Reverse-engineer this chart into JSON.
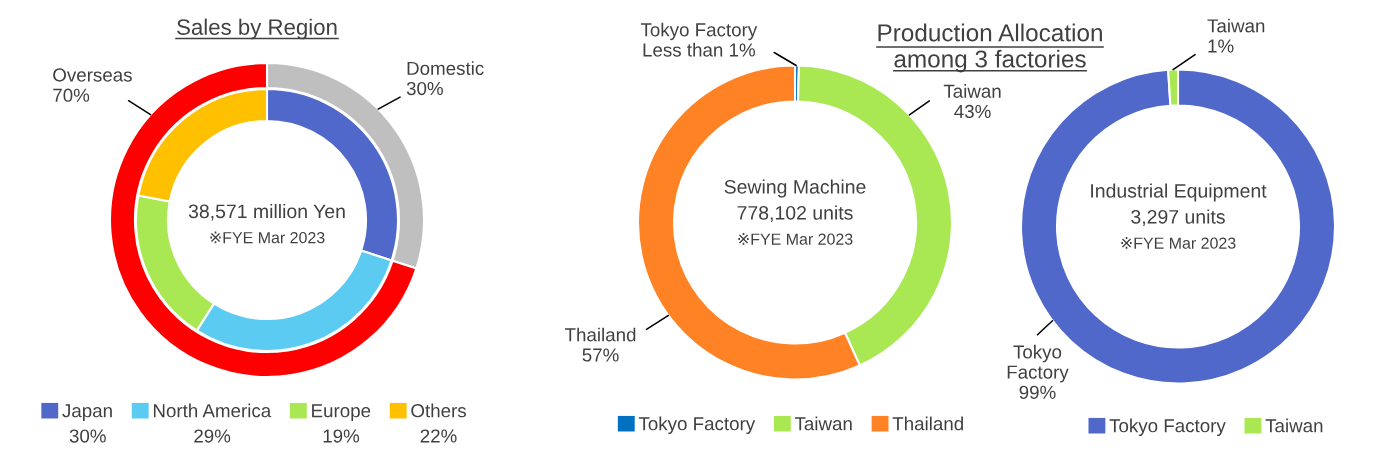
{
  "chart_data": [
    {
      "type": "donut",
      "title": "Sales by Region",
      "categories": [
        "Japan",
        "North America",
        "Europe",
        "Others",
        "Domestic",
        "Overseas"
      ],
      "colors": [
        "#4f68c9",
        "#5ccbf1",
        "#a9e852",
        "#ffc000",
        "#bfbfbf",
        "#ff0000"
      ],
      "series": [
        {
          "values": [
            null,
            null,
            null,
            null,
            30,
            70
          ],
          "value_labels": [
            null,
            null,
            null,
            null,
            "30%",
            "70%"
          ]
        },
        {
          "values": [
            30,
            29,
            19,
            22,
            null,
            null
          ]
        }
      ],
      "annotations": [
        "38,571 million Yen",
        "※FYE Mar 2023",
        "30%",
        "29%",
        "19%",
        "22%"
      ],
      "legend": "bottom"
    },
    {
      "type": "donut",
      "title": "Production Allocation among 3 factories",
      "categories": [
        "Tokyo Factory",
        "Taiwan",
        "Thailand"
      ],
      "values": [
        0.4,
        43,
        57
      ],
      "colors": [
        "#0070c0",
        "#a9e852",
        "#ff8225"
      ],
      "value_labels": [
        "Less than 1%",
        "43%",
        "57%"
      ],
      "annotations": [
        "Sewing Machine",
        "778,102 units",
        "※FYE Mar 2023"
      ],
      "legend": "bottom"
    },
    {
      "type": "donut",
      "categories": [
        "Tokyo Factory",
        "Taiwan"
      ],
      "values": [
        99,
        1
      ],
      "colors": [
        "#4f68c9",
        "#a9e852"
      ],
      "value_labels": [
        "99%",
        "1%"
      ],
      "annotations": [
        "Industrial Equipment",
        "3,297 units",
        "※FYE Mar 2023"
      ],
      "legend": "bottom"
    }
  ]
}
